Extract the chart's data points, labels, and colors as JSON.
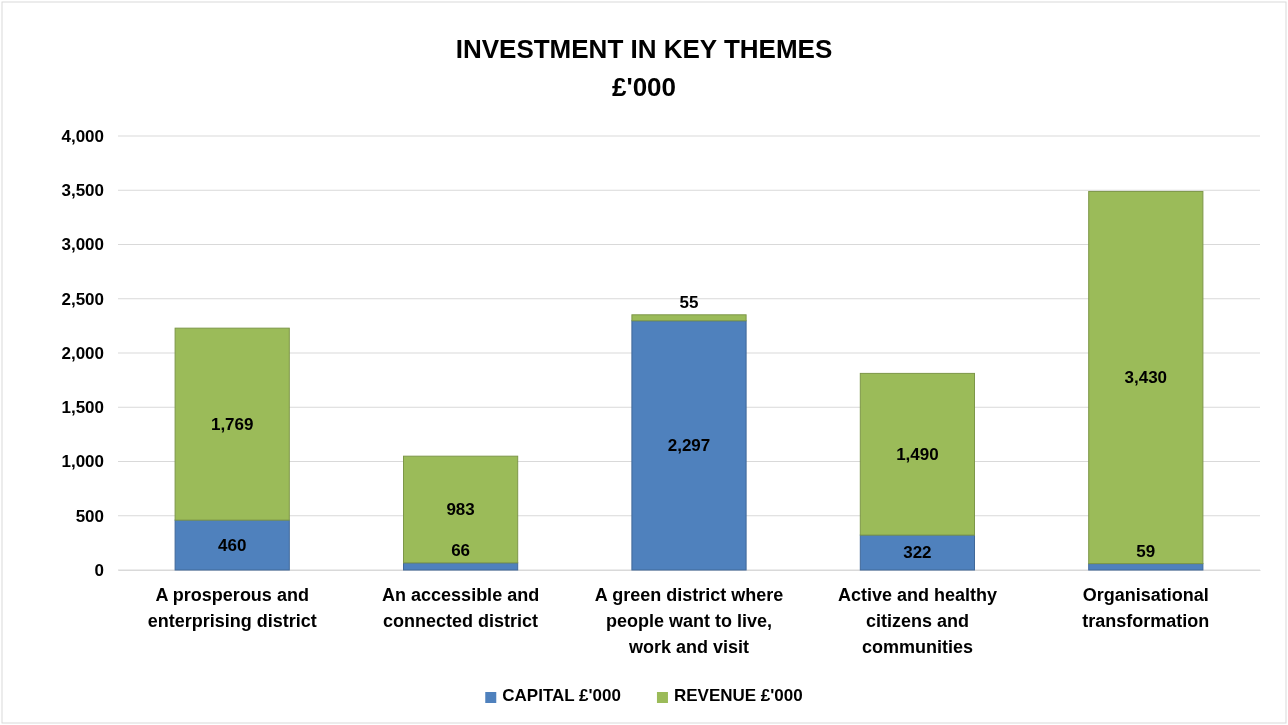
{
  "chart_data": {
    "type": "bar",
    "title": "INVESTMENT IN KEY THEMES",
    "subtitle": "£'000",
    "stacked": true,
    "categories": [
      "A prosperous and enterprising district",
      "An accessible and connected district",
      "A green district where people want to live, work and visit",
      "Active and healthy citizens and communities",
      "Organisational transformation"
    ],
    "series": [
      {
        "name": "CAPITAL £'000",
        "color": "#4f81bd",
        "values": [
          460,
          66,
          2297,
          322,
          59
        ],
        "value_labels": [
          "460",
          "66",
          "2,297",
          "322",
          "59"
        ]
      },
      {
        "name": "REVENUE £'000",
        "color": "#9bbb59",
        "values": [
          1769,
          983,
          55,
          1490,
          3430
        ],
        "value_labels": [
          "1,769",
          "983",
          "55",
          "1,490",
          "3,430"
        ]
      }
    ],
    "ylim": [
      0,
      4000
    ],
    "yticks": [
      0,
      {
        "value": 500,
        "label": "500"
      },
      {
        "value": 1000,
        "label": "1,000"
      },
      {
        "value": 1500,
        "label": "1,500"
      },
      {
        "value": 2000,
        "label": "2,000"
      },
      {
        "value": 2500,
        "label": "2,500"
      },
      {
        "value": 3000,
        "label": "3,000"
      },
      {
        "value": 3500,
        "label": "3,500"
      },
      {
        "value": 4000,
        "label": "4,000"
      }
    ],
    "grid": "y",
    "legend": "bottom"
  }
}
